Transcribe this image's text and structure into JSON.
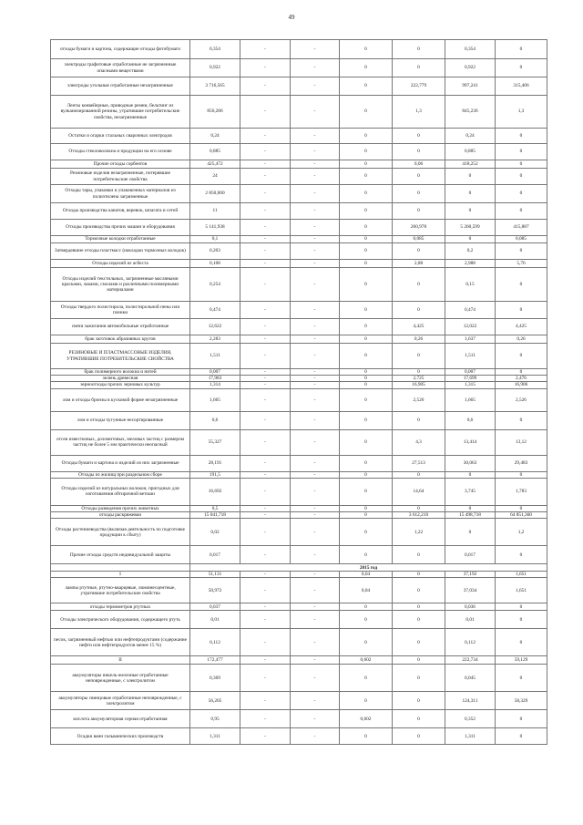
{
  "page_number": "49",
  "rows": [
    [
      "отходы бумаги и картона, содержащие отходы фотобумаги",
      "0,354",
      "-",
      "-",
      "0",
      "0",
      "0,354",
      "0"
    ],
    [
      "электроды графитовые отработанные не загрязненные опасными веществами",
      "0,922",
      "-",
      "-",
      "0",
      "0",
      "0,922",
      "0"
    ],
    [
      "электроды угольные отработанные незагрязненные",
      "3 716,565",
      "-",
      "-",
      "0",
      "222,779",
      "997,241",
      "315,406"
    ],
    [
      "Ленты конвейерные, приводные ремни, бельтинг из вулканизированной резины, утратившие потребительские свойства, незагрязненные",
      "856,286",
      "-",
      "-",
      "0",
      "1,3",
      "845,236",
      "1,3"
    ],
    [
      "Остатки и огарки стальных сварочных электродов",
      "0,24",
      "-",
      "-",
      "0",
      "0",
      "0,24",
      "0"
    ],
    [
      "Отходы стекловолокна и продукции на его основе",
      "0,885",
      "-",
      "-",
      "0",
      "0",
      "0,885",
      "0"
    ],
    [
      "Прочие отходы сорбентов",
      "425,472",
      "-",
      "-",
      "0",
      "0,06",
      "418,252",
      "0"
    ],
    [
      "Резиновые изделия незагрязненные, потерявшие потребительские свойства",
      "24",
      "-",
      "-",
      "0",
      "0",
      "0",
      "0"
    ],
    [
      "Отходы тары, упаковки и упаковочных материалов из полиэтилена загрязненные",
      "2 850,000",
      "-",
      "-",
      "0",
      "0",
      "0",
      "0"
    ],
    [
      "Отходы производства канатов, веревок, шпагата и сетей",
      "11",
      "-",
      "-",
      "0",
      "0",
      "0",
      "0"
    ],
    [
      "Отходы производства прочих машин и оборудования",
      "5 141,938",
      "-",
      "-",
      "0",
      "260,978",
      "5 260,599",
      "415,887"
    ],
    [
      "Тормозные колодки отработанные",
      "0,1",
      "-",
      "-",
      "0",
      "0,085",
      "0",
      "0,085"
    ],
    [
      "Затвердевшие отходы пластмасс (накладки тормозных колодок)",
      "0,203",
      "-",
      "-",
      "0",
      "0",
      "0,2",
      "0"
    ],
    [
      "Отходы изделий из асбеста",
      "0,108",
      "-",
      "-",
      "0",
      "2,88",
      "2,988",
      "5,76"
    ],
    [
      "Отходы изделий текстильных, загрязненные масляными красками, лаками, смолами и различными полимерными материалами",
      "0,254",
      "-",
      "-",
      "0",
      "0",
      "0,15",
      "0"
    ],
    [
      "Отходы твердого полистирола, полистирольной пены или пленки",
      "0,474",
      "-",
      "-",
      "0",
      "0",
      "0,474",
      "0"
    ],
    [
      "свечи зажигания автомобильные отработанные",
      "12,622",
      "-",
      "-",
      "0",
      "4,425",
      "12,022",
      "4,425"
    ],
    [
      "брак заготовок абразивных кругов",
      "2,283",
      "-",
      "-",
      "0",
      "0,26",
      "1,637",
      "0,26"
    ],
    [
      "РЕЗИНОВЫЕ И ПЛАСТМАССОВЫЕ ИЗДЕЛИЯ, УТРАТИВШИЕ ПОТРЕБИТЕЛЬСКИЕ СВОЙСТВА",
      "1,511",
      "-",
      "-",
      "0",
      "0",
      "1,511",
      "0"
    ],
    [
      "брак полимерного волокна и нитей",
      "0,007",
      "-",
      "-",
      "0",
      "0",
      "0,007",
      "0"
    ],
    [
      "зелень древесная",
      "17,983",
      "-",
      "-",
      "0",
      "2,725",
      "17,699",
      "2,476"
    ],
    [
      "зерноотходы прочих зерновых культур",
      "1,314",
      "-",
      "-",
      "0",
      "16,905",
      "1,315",
      "16,906"
    ],
    [
      "лом и отходы бронзы в кусковой форме незагрязненные",
      "1,665",
      "-",
      "-",
      "0",
      "2,526",
      "1,665",
      "2,526"
    ],
    [
      "лом и отходы чугунные несортированные",
      "0,6",
      "-",
      "-",
      "0",
      "0",
      "0,6",
      "0"
    ],
    [
      "отсев известковых, доломитовых, меловых частиц с размером частиц не более 5 мм практически неопасный",
      "55,327",
      "-",
      "-",
      "0",
      "4,3",
      "13,414",
      "13,12"
    ],
    [
      "Отходы бумаги и картона и изделий из них загрязненные",
      "28,191",
      "-",
      "-",
      "0",
      "27,513",
      "30,063",
      "29,483"
    ],
    [
      "Отходы из жилищ при раздельном сборе",
      "191,5",
      "-",
      "-",
      "0",
      "0",
      "0",
      "0"
    ],
    [
      "Отходы изделий из натуральных волокон, пригодных для изготовления обтирочной ветоши",
      "16,692",
      "-",
      "-",
      "0",
      "14,64",
      "3,745",
      "1,783"
    ],
    [
      "Отходы разведения прочих животных",
      "0,5",
      "-",
      "-",
      "0",
      "0",
      "0",
      "0"
    ],
    [
      "отходы раскряжевки",
      "15 041,718",
      "-",
      "-",
      "0",
      "3 612,210",
      "15 498,718",
      "64 851,360"
    ],
    [
      "Отходы растениеводства (включая деятельность по подготовке продукции к сбыту)",
      "0,02",
      "-",
      "-",
      "0",
      "1,22",
      "0",
      "1,2"
    ],
    [
      "Прочие отходы средств индивидуальной защиты",
      "0,017",
      "-",
      "-",
      "0",
      "0",
      "0,017",
      "0"
    ],
    [
      "2015 год"
    ],
    [
      "I",
      "51,131",
      "-",
      "-",
      "0,04",
      "0",
      "37,192",
      "1,651"
    ],
    [
      "лампы ртутные, ртутно-кварцевые, люминесцентные, утратившие потребительские свойства",
      "50,972",
      "-",
      "-",
      "0,04",
      "0",
      "37,034",
      "1,651"
    ],
    [
      "отходы термометров ртутных",
      "0,037",
      "-",
      "-",
      "0",
      "0",
      "0,036",
      "0"
    ],
    [
      "Отходы электрического оборудования, содержащего ртуть",
      "0,01",
      "-",
      "-",
      "0",
      "0",
      "0,01",
      "0"
    ],
    [
      "песок, загрязненный нефтью или нефтепродуктами (содержание нефти или нефтепродуктов менее 15 %)",
      "0,112",
      "-",
      "-",
      "0",
      "0",
      "0,112",
      "0"
    ],
    [
      "II",
      "172,477",
      "-",
      "-",
      "0,602",
      "0",
      "222,734",
      "59,129"
    ],
    [
      "аккумуляторы никель-железные отработанные неповрежденные, с электролитом",
      "0,369",
      "-",
      "-",
      "0",
      "0",
      "0,045",
      "0"
    ],
    [
      "аккумуляторы свинцовые отработанные неповрежденные, с электролитом",
      "56,205",
      "-",
      "-",
      "0",
      "0",
      "124,311",
      "58,329"
    ],
    [
      "кислота аккумуляторная серная отработанная",
      "0,95",
      "-",
      "-",
      "0,602",
      "0",
      "0,352",
      "0"
    ],
    [
      "Осадки ванн гальванических производств",
      "1,311",
      "-",
      "-",
      "0",
      "0",
      "1,311",
      "0"
    ]
  ]
}
